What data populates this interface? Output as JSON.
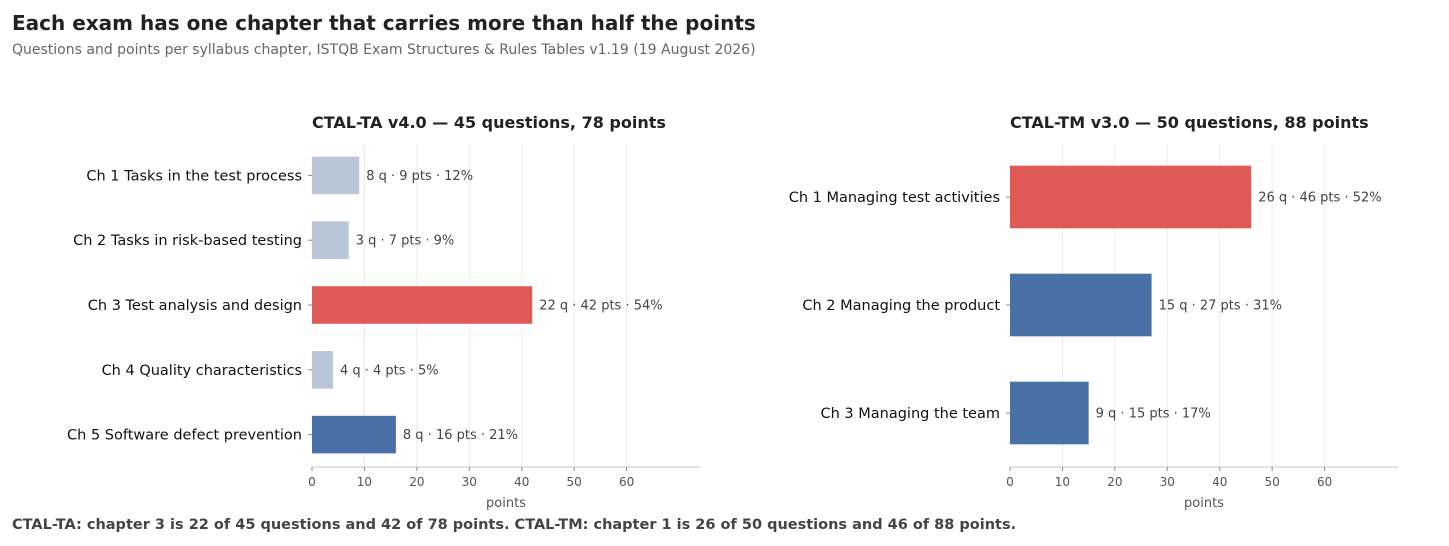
{
  "title": "Each exam has one chapter that carries more than half the points",
  "subtitle": "Questions and points per syllabus chapter, ISTQB Exam Structures & Rules Tables v1.19 (19 August 2026)",
  "footer": "CTAL-TA: chapter 3 is 22 of 45 questions and 42 of 78 points.   CTAL-TM: chapter 1 is 26 of 50 questions and 46 of 88 points.",
  "colors": {
    "highlight": "#e05a55",
    "primary": "#4a70a8",
    "muted": "#b8c6d7"
  },
  "chart_data": [
    {
      "type": "bar",
      "orientation": "horizontal",
      "title": "CTAL-TA v4.0  —  45 questions, 78 points",
      "xlabel": "points",
      "xlim": [
        0,
        74
      ],
      "xticks": [
        0,
        10,
        20,
        30,
        40,
        50,
        60
      ],
      "grid": true,
      "categories": [
        "Ch 1  Tasks in the test process",
        "Ch 2  Tasks in risk-based testing",
        "Ch 3  Test analysis and design",
        "Ch 4  Quality characteristics",
        "Ch 5  Software defect prevention"
      ],
      "values": [
        9,
        7,
        42,
        4,
        16
      ],
      "questions": [
        8,
        3,
        22,
        4,
        8
      ],
      "labels": [
        "8 q · 9 pts · 12%",
        "3 q · 7 pts · 9%",
        "22 q · 42 pts · 54%",
        "4 q · 4 pts · 5%",
        "8 q · 16 pts · 21%"
      ],
      "bar_colors": [
        "muted",
        "muted",
        "highlight",
        "muted",
        "primary"
      ]
    },
    {
      "type": "bar",
      "orientation": "horizontal",
      "title": "CTAL-TM v3.0  —  50 questions, 88 points",
      "xlabel": "points",
      "xlim": [
        0,
        74
      ],
      "xticks": [
        0,
        10,
        20,
        30,
        40,
        50,
        60
      ],
      "grid": true,
      "categories": [
        "Ch 1  Managing test activities",
        "Ch 2  Managing the product",
        "Ch 3  Managing the team"
      ],
      "values": [
        46,
        27,
        15
      ],
      "questions": [
        26,
        15,
        9
      ],
      "labels": [
        "26 q · 46 pts · 52%",
        "15 q · 27 pts · 31%",
        "9 q · 15 pts · 17%"
      ],
      "bar_colors": [
        "highlight",
        "primary",
        "primary"
      ]
    }
  ]
}
